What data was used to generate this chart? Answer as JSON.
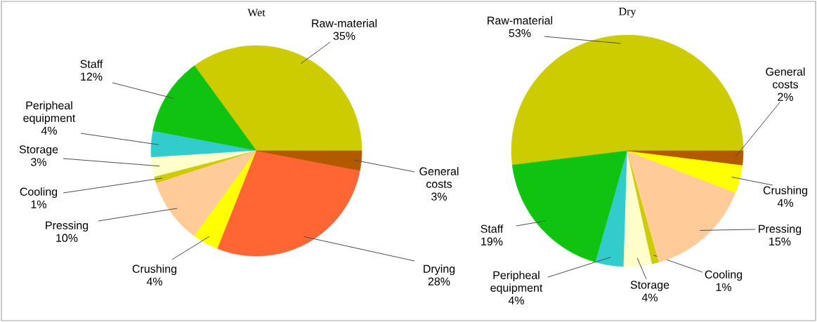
{
  "chart_data": [
    {
      "type": "pie",
      "title": "Wet",
      "categories": [
        "Raw-material",
        "Staff",
        "Peripheal equipment",
        "Storage",
        "Cooling",
        "Pressing",
        "Crushing",
        "Drying",
        "General costs"
      ],
      "values": [
        35,
        12,
        4,
        3,
        1,
        10,
        4,
        28,
        3
      ],
      "value_labels": [
        "35%",
        "12%",
        "4%",
        "3%",
        "1%",
        "10%",
        "4%",
        "28%",
        "3%"
      ],
      "colors": [
        "#cccc00",
        "#11c311",
        "#33cccc",
        "#ffffcc",
        "#cccc00",
        "#ffcc99",
        "#ffff00",
        "#ff6633",
        "#b35900"
      ]
    },
    {
      "type": "pie",
      "title": "Dry",
      "categories": [
        "Raw-material",
        "Staff",
        "Peripheal equipment",
        "Storage",
        "Cooling",
        "Pressing",
        "Crushing",
        "General costs"
      ],
      "values": [
        53,
        19,
        4,
        4,
        1,
        15,
        4,
        2
      ],
      "value_labels": [
        "53%",
        "19%",
        "4%",
        "4%",
        "1%",
        "15%",
        "4%",
        "2%"
      ],
      "colors": [
        "#cccc00",
        "#11c311",
        "#33cccc",
        "#ffffcc",
        "#cccc00",
        "#ffcc99",
        "#ffff00",
        "#b35900"
      ]
    }
  ]
}
